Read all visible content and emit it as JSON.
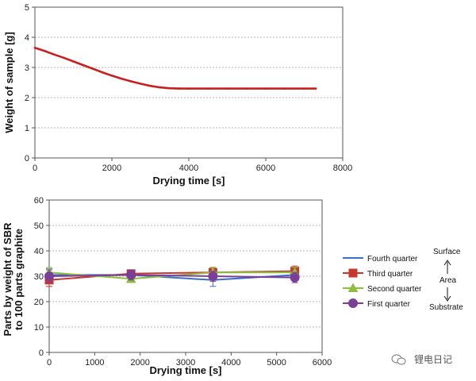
{
  "chart_data": [
    {
      "type": "line",
      "xlabel": "Drying time [s]",
      "ylabel": "Weight of sample [g]",
      "xlim": [
        0,
        8000
      ],
      "ylim": [
        0,
        5
      ],
      "xticks": [
        "0",
        "2000",
        "4000",
        "6000",
        "8000"
      ],
      "yticks": [
        "0",
        "1",
        "2",
        "3",
        "4",
        "5"
      ],
      "grid": "horizontal-dashed",
      "series": [
        {
          "color": "#c8201e",
          "x": [
            0,
            250,
            500,
            750,
            1000,
            1250,
            1500,
            1750,
            2000,
            2250,
            2500,
            2750,
            3000,
            3250,
            3500,
            3750,
            4000,
            4500,
            5000,
            5500,
            6000,
            6500,
            7000,
            7300
          ],
          "y": [
            3.65,
            3.55,
            3.43,
            3.32,
            3.2,
            3.08,
            2.96,
            2.84,
            2.73,
            2.63,
            2.54,
            2.46,
            2.39,
            2.34,
            2.31,
            2.3,
            2.3,
            2.3,
            2.3,
            2.3,
            2.3,
            2.3,
            2.3,
            2.3
          ]
        }
      ]
    },
    {
      "type": "line",
      "xlabel": "Drying time [s]",
      "ylabel_line1": "Parts by weight of SBR",
      "ylabel_line2": "to 100 parts  graphite",
      "xlim": [
        0,
        6000
      ],
      "ylim": [
        0,
        60
      ],
      "xticks": [
        "0",
        "1000",
        "2000",
        "3000",
        "4000",
        "5000",
        "6000"
      ],
      "yticks": [
        "0",
        "10",
        "20",
        "30",
        "40",
        "50",
        "60"
      ],
      "grid": "horizontal-dashed",
      "series": [
        {
          "name": "Fourth quarter",
          "color": "#3a6fc4",
          "marker": "none",
          "x": [
            0,
            1800,
            3600,
            5400
          ],
          "y": [
            30.5,
            30.5,
            28.5,
            30.5
          ],
          "err": [
            2.5,
            2.0,
            2.5,
            2.0
          ]
        },
        {
          "name": "Third quarter",
          "color": "#c8362e",
          "marker": "square",
          "x": [
            0,
            1800,
            3600,
            5400
          ],
          "y": [
            28.5,
            31.0,
            31.5,
            32.0
          ],
          "err": [
            2.5,
            1.5,
            2.0,
            2.0
          ]
        },
        {
          "name": "Second quarter",
          "color": "#8dbe3c",
          "marker": "triangle",
          "x": [
            0,
            1800,
            3600,
            5400
          ],
          "y": [
            31.5,
            29.0,
            31.5,
            31.5
          ],
          "err": [
            2.0,
            1.5,
            2.0,
            2.0
          ]
        },
        {
          "name": "First quarter",
          "color": "#7a3f98",
          "marker": "circle",
          "x": [
            0,
            1800,
            3600,
            5400
          ],
          "y": [
            30.0,
            30.5,
            30.0,
            29.5
          ],
          "err": [
            2.5,
            2.0,
            2.0,
            2.0
          ]
        }
      ],
      "annotations": {
        "surface": "Surface",
        "area": "Area",
        "substrate": "Substrate"
      }
    }
  ],
  "watermark": "锂电日记"
}
